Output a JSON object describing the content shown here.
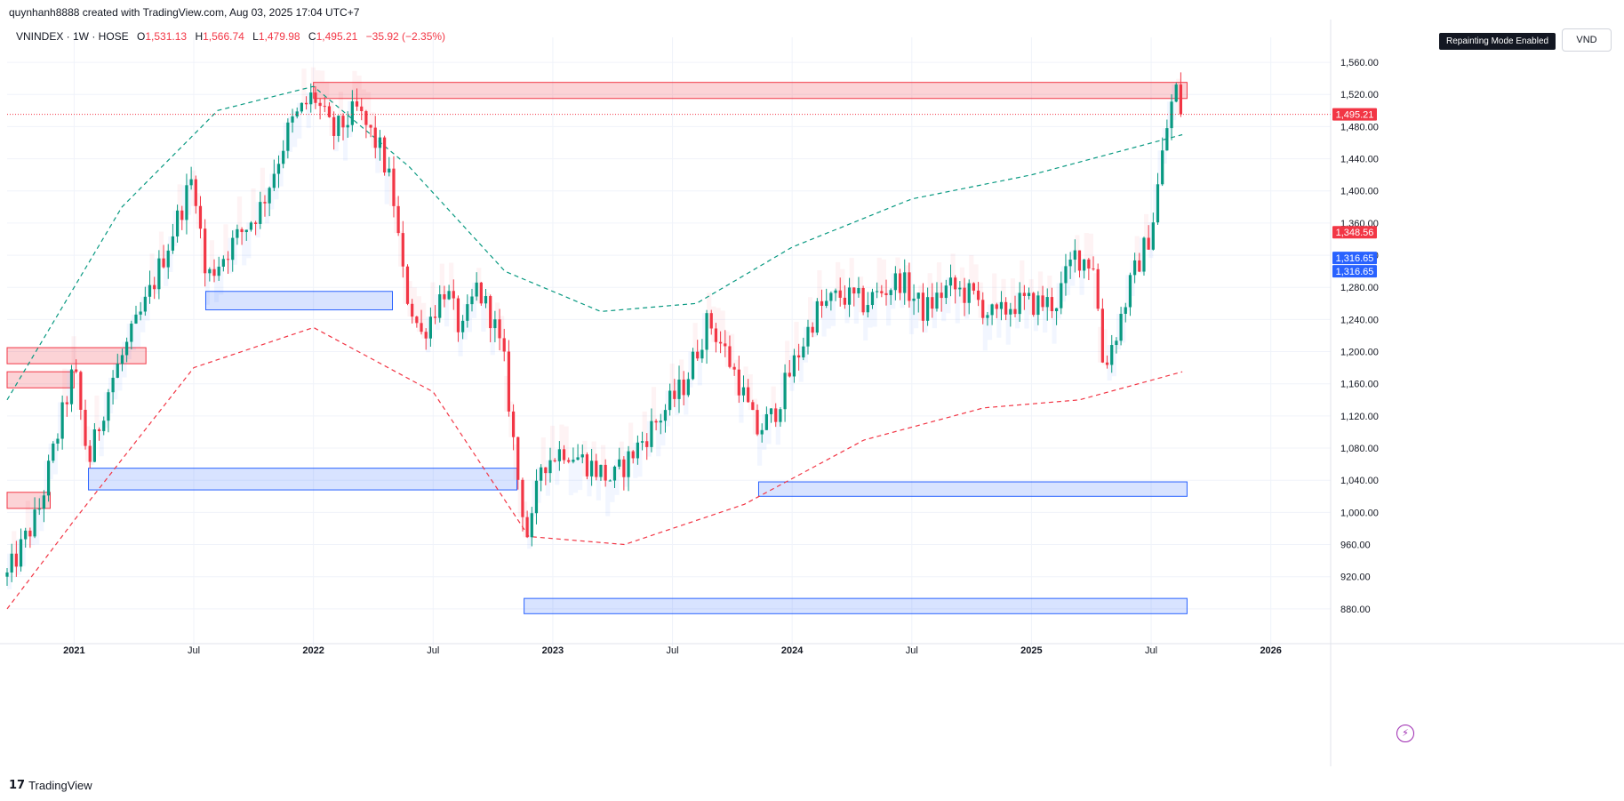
{
  "header": {
    "text": "quynhanh8888 created with TradingView.com, Aug 03, 2025 17:04 UTC+7"
  },
  "legend": {
    "symbol": "VNINDEX · 1W · HOSE",
    "o_key": "O",
    "o_val": "1,531.13",
    "h_key": "H",
    "h_val": "1,566.74",
    "l_key": "L",
    "l_val": "1,479.98",
    "c_key": "C",
    "c_val": "1,495.21",
    "change": "−35.92 (−2.35%)"
  },
  "badges": {
    "repaint": "Repainting Mode Enabled",
    "currency": "VND"
  },
  "footer": {
    "brand": "TradingView"
  },
  "colors": {
    "up": "#089981",
    "down": "#f23645",
    "blue": "#2962ff",
    "red_zone": "#f23645",
    "blue_zone": "#2962ff"
  },
  "chart_data": {
    "type": "candlestick",
    "symbol": "VNINDEX",
    "timeframe": "1W",
    "ylim": [
      850,
      1580
    ],
    "y_ticks": [
      880,
      920,
      960,
      1000,
      1040,
      1080,
      1120,
      1160,
      1200,
      1240,
      1280,
      1320,
      1360,
      1400,
      1440,
      1480,
      1520,
      1560
    ],
    "y_tick_labels": [
      "880.00",
      "920.00",
      "960.00",
      "1,000.00",
      "1,040.00",
      "1,080.00",
      "1,120.00",
      "1,160.00",
      "1,200.00",
      "1,240.00",
      "1,280.00",
      "1,320.00",
      "1,360.00",
      "1,400.00",
      "1,440.00",
      "1,480.00",
      "1,520.00",
      "1,560.00"
    ],
    "x_ticks": [
      {
        "label": "2021",
        "t": 2021.0
      },
      {
        "label": "Jul",
        "t": 2021.5
      },
      {
        "label": "2022",
        "t": 2022.0
      },
      {
        "label": "Jul",
        "t": 2022.5
      },
      {
        "label": "2023",
        "t": 2023.0
      },
      {
        "label": "Jul",
        "t": 2023.5
      },
      {
        "label": "2024",
        "t": 2024.0
      },
      {
        "label": "Jul",
        "t": 2024.5
      },
      {
        "label": "2025",
        "t": 2025.0
      },
      {
        "label": "Jul",
        "t": 2025.5
      },
      {
        "label": "2026",
        "t": 2026.0
      }
    ],
    "xlim": [
      2020.72,
      2026.25
    ],
    "price_labels": [
      {
        "value": 1495.21,
        "text": "1,495.21",
        "color": "#f23645"
      },
      {
        "value": 1348.56,
        "text": "1,348.56",
        "color": "#f23645"
      },
      {
        "value": 1316.65,
        "text": "1,316.65",
        "color": "#2962ff"
      },
      {
        "value": 1316.65,
        "text": "1,316.65",
        "color": "#2962ff"
      }
    ],
    "last_price": 1495.21,
    "anchors": [
      [
        2020.72,
        920
      ],
      [
        2020.85,
        1000
      ],
      [
        2021.0,
        1180
      ],
      [
        2021.06,
        1060
      ],
      [
        2021.15,
        1160
      ],
      [
        2021.3,
        1260
      ],
      [
        2021.5,
        1420
      ],
      [
        2021.55,
        1290
      ],
      [
        2021.65,
        1330
      ],
      [
        2021.78,
        1380
      ],
      [
        2021.9,
        1480
      ],
      [
        2022.0,
        1520
      ],
      [
        2022.08,
        1470
      ],
      [
        2022.18,
        1500
      ],
      [
        2022.28,
        1450
      ],
      [
        2022.33,
        1400
      ],
      [
        2022.38,
        1280
      ],
      [
        2022.45,
        1220
      ],
      [
        2022.55,
        1280
      ],
      [
        2022.62,
        1220
      ],
      [
        2022.68,
        1280
      ],
      [
        2022.75,
        1240
      ],
      [
        2022.8,
        1180
      ],
      [
        2022.85,
        1050
      ],
      [
        2022.9,
        960
      ],
      [
        2022.95,
        1060
      ],
      [
        2023.05,
        1080
      ],
      [
        2023.15,
        1060
      ],
      [
        2023.25,
        1040
      ],
      [
        2023.35,
        1080
      ],
      [
        2023.45,
        1120
      ],
      [
        2023.55,
        1160
      ],
      [
        2023.65,
        1240
      ],
      [
        2023.72,
        1200
      ],
      [
        2023.78,
        1160
      ],
      [
        2023.85,
        1100
      ],
      [
        2023.92,
        1120
      ],
      [
        2024.0,
        1180
      ],
      [
        2024.1,
        1250
      ],
      [
        2024.2,
        1270
      ],
      [
        2024.3,
        1260
      ],
      [
        2024.45,
        1290
      ],
      [
        2024.55,
        1250
      ],
      [
        2024.65,
        1280
      ],
      [
        2024.75,
        1270
      ],
      [
        2024.85,
        1240
      ],
      [
        2024.92,
        1260
      ],
      [
        2025.0,
        1260
      ],
      [
        2025.1,
        1260
      ],
      [
        2025.18,
        1320
      ],
      [
        2025.26,
        1310
      ],
      [
        2025.3,
        1180
      ],
      [
        2025.35,
        1220
      ],
      [
        2025.42,
        1290
      ],
      [
        2025.5,
        1350
      ],
      [
        2025.56,
        1470
      ],
      [
        2025.6,
        1530
      ],
      [
        2025.63,
        1495
      ]
    ],
    "red_zones": [
      {
        "x0": 2022.0,
        "x1": 2025.65,
        "y0": 1515,
        "y1": 1535
      },
      {
        "x0": 2020.72,
        "x1": 2021.3,
        "y0": 1185,
        "y1": 1205
      },
      {
        "x0": 2020.72,
        "x1": 2021.0,
        "y0": 1155,
        "y1": 1175
      },
      {
        "x0": 2020.72,
        "x1": 2020.9,
        "y0": 1005,
        "y1": 1025
      }
    ],
    "blue_zones": [
      {
        "x0": 2021.06,
        "x1": 2022.85,
        "y0": 1028,
        "y1": 1055
      },
      {
        "x0": 2021.55,
        "x1": 2022.33,
        "y0": 1252,
        "y1": 1275
      },
      {
        "x0": 2022.88,
        "x1": 2025.65,
        "y0": 874,
        "y1": 893
      },
      {
        "x0": 2023.86,
        "x1": 2025.65,
        "y0": 1020,
        "y1": 1038
      }
    ]
  }
}
